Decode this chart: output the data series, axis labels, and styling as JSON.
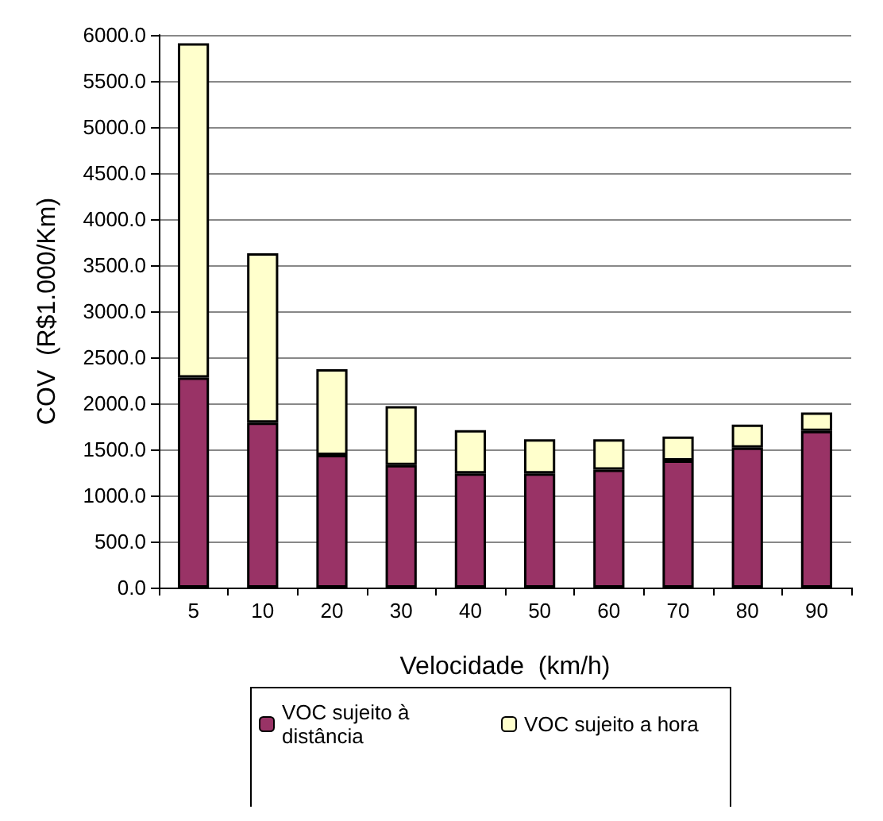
{
  "chart_data": {
    "type": "bar",
    "stacked": true,
    "xlabel": "Velocidade  (km/h)",
    "ylabel": "COV  (R$1.000/Km)",
    "categories": [
      "5",
      "10",
      "20",
      "30",
      "40",
      "50",
      "60",
      "70",
      "80",
      "90"
    ],
    "series": [
      {
        "name": "VOC sujeito à distância",
        "color": "#993366",
        "values": [
          2280,
          1790,
          1440,
          1330,
          1240,
          1240,
          1280,
          1380,
          1520,
          1700
        ]
      },
      {
        "name": "VOC sujeito a hora",
        "color": "#ffffcc",
        "values": [
          3630,
          1840,
          930,
          640,
          470,
          370,
          330,
          260,
          250,
          200
        ]
      }
    ],
    "ylim": [
      0,
      6000
    ],
    "yticks": [
      {
        "value": 0,
        "label": "0.0"
      },
      {
        "value": 500,
        "label": "500.0"
      },
      {
        "value": 1000,
        "label": "1000.0"
      },
      {
        "value": 1500,
        "label": "1500.0"
      },
      {
        "value": 2000,
        "label": "2000.0"
      },
      {
        "value": 2500,
        "label": "2500.0"
      },
      {
        "value": 3000,
        "label": "3000.0"
      },
      {
        "value": 3500,
        "label": "3500.0"
      },
      {
        "value": 4000,
        "label": "4000.0"
      },
      {
        "value": 4500,
        "label": "4500.0"
      },
      {
        "value": 5000,
        "label": "5000.0"
      },
      {
        "value": 5500,
        "label": "5500.0"
      },
      {
        "value": 6000,
        "label": "6000.0"
      }
    ],
    "grid": "y",
    "legend": "bottom"
  }
}
